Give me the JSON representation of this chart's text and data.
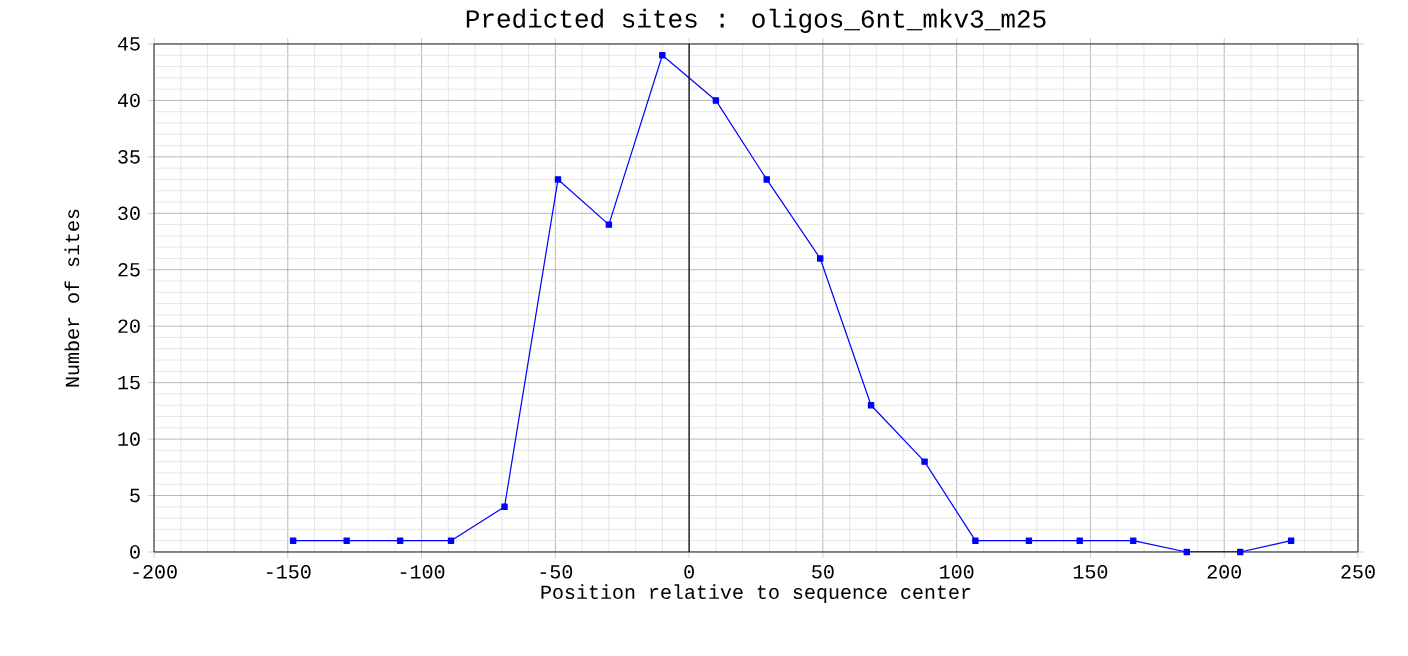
{
  "chart_data": {
    "type": "line",
    "title": "Predicted sites : oligos_6nt_mkv3_m25",
    "xlabel": "Position relative to sequence center",
    "ylabel": "Number of sites",
    "x": [
      -148,
      -128,
      -108,
      -89,
      -69,
      -49,
      -30,
      -10,
      10,
      29,
      49,
      68,
      88,
      107,
      127,
      146,
      166,
      186,
      206,
      225
    ],
    "series": [
      {
        "color": "#0000ff",
        "values": [
          1,
          1,
          1,
          1,
          4,
          33,
          29,
          44,
          40,
          33,
          26,
          13,
          8,
          1,
          1,
          1,
          1,
          0,
          0,
          1
        ]
      }
    ],
    "xlim": [
      -200,
      250
    ],
    "xticks": [
      -200,
      -150,
      -100,
      -50,
      0,
      50,
      100,
      150,
      200,
      250
    ],
    "ylim": [
      0,
      45
    ],
    "yticks": [
      0,
      5,
      10,
      15,
      20,
      25,
      30,
      35,
      40,
      45
    ],
    "ref_lines": [
      {
        "axis": "x",
        "value": 0,
        "color": "#000000"
      }
    ],
    "grid": true,
    "marker": "square",
    "line_style": "solid"
  }
}
